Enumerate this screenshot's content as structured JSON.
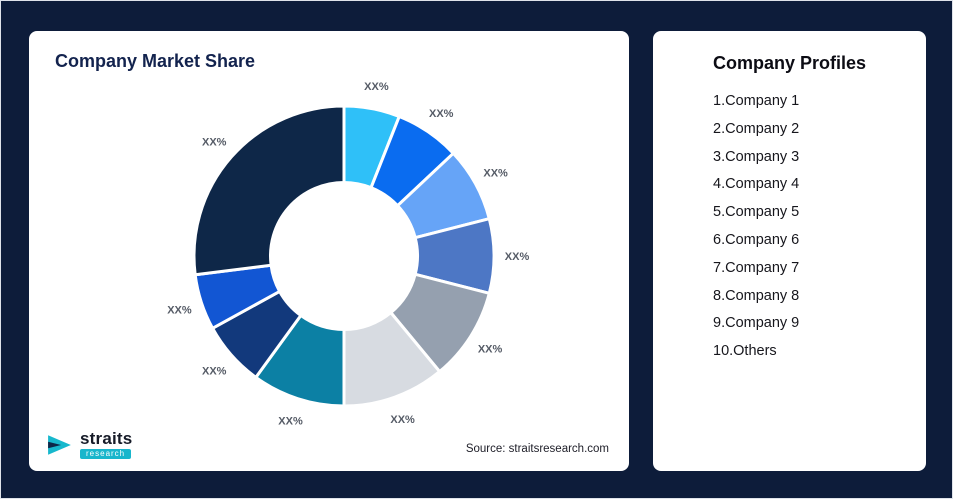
{
  "market_card": {
    "title": "Company Market Share",
    "source": "Source: straitsresearch.com",
    "logo": {
      "brand": "straits",
      "sub": "research"
    }
  },
  "profiles_card": {
    "title": "Company Profiles",
    "items": [
      "1.Company 1",
      "2.Company 2",
      "3.Company 3",
      "4.Company 4",
      "5.Company 5",
      "6.Company 6",
      "7.Company 7",
      "8.Company 8",
      "9.Company 9",
      "10.Others"
    ]
  },
  "chart_data": {
    "type": "pie",
    "subtype": "donut",
    "title": "Company Market Share",
    "value_labels_shown": "XX%",
    "note": "all slice labels are placeholder XX%; values below are angular-share estimates in percent",
    "segments": [
      {
        "label": "XX%",
        "value": 6,
        "color": "#2fc0f8"
      },
      {
        "label": "XX%",
        "value": 7,
        "color": "#0a6cf0"
      },
      {
        "label": "XX%",
        "value": 8,
        "color": "#66a4f7"
      },
      {
        "label": "XX%",
        "value": 8,
        "color": "#4d77c5"
      },
      {
        "label": "XX%",
        "value": 10,
        "color": "#95a0af"
      },
      {
        "label": "XX%",
        "value": 11,
        "color": "#d7dbe1"
      },
      {
        "label": "XX%",
        "value": 10,
        "color": "#0c80a4"
      },
      {
        "label": "XX%",
        "value": 7,
        "color": "#12397c"
      },
      {
        "label": "XX%",
        "value": 6,
        "color": "#1256d3"
      },
      {
        "label": "XX%",
        "value": 27,
        "color": "#0e2748"
      }
    ],
    "inner_radius_ratio": 0.49,
    "legend_position": "none",
    "background": "#ffffff"
  }
}
